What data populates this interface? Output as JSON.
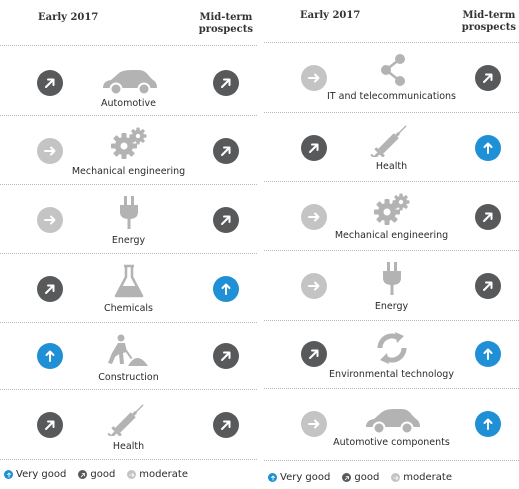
{
  "left": {
    "header_left": "Early 2017",
    "header_right_line1": "Mid-term",
    "header_right_line2": "prospects",
    "rows": [
      {
        "label": "Automotive",
        "icon": "car-icon",
        "early": "good",
        "midterm": "good"
      },
      {
        "label": "Mechanical engineering",
        "icon": "gears-icon",
        "early": "moderate",
        "midterm": "good"
      },
      {
        "label": "Energy",
        "icon": "plug-icon",
        "early": "moderate",
        "midterm": "good"
      },
      {
        "label": "Chemicals",
        "icon": "flask-icon",
        "early": "good",
        "midterm": "very-good"
      },
      {
        "label": "Construction",
        "icon": "construction-worker-icon",
        "early": "very-good",
        "midterm": "good"
      },
      {
        "label": "Health",
        "icon": "syringe-icon",
        "early": "good",
        "midterm": "good"
      }
    ],
    "legend": {
      "very_good": "Very good",
      "good": "good",
      "moderate": "moderate"
    }
  },
  "right": {
    "header_left": "Early 2017",
    "header_right_line1": "Mid-term",
    "header_right_line2": "prospects",
    "rows": [
      {
        "label": "IT and telecommunications",
        "icon": "share-icon",
        "early": "moderate",
        "midterm": "good"
      },
      {
        "label": "Health",
        "icon": "syringe-icon",
        "early": "good",
        "midterm": "very-good"
      },
      {
        "label": "Mechanical engineering",
        "icon": "gears-icon",
        "early": "moderate",
        "midterm": "good"
      },
      {
        "label": "Energy",
        "icon": "plug-icon",
        "early": "moderate",
        "midterm": "good"
      },
      {
        "label": "Environmental technology",
        "icon": "recycle-icon",
        "early": "good",
        "midterm": "very-good"
      },
      {
        "label": "Automotive components",
        "icon": "car-icon",
        "early": "moderate",
        "midterm": "very-good"
      }
    ],
    "legend": {
      "very_good": "Very good",
      "good": "good",
      "moderate": "moderate"
    }
  },
  "colors": {
    "very_good": "#1f8fd6",
    "good": "#58595b",
    "moderate": "#c4c4c4",
    "icon_gray": "#b3b3b3"
  }
}
